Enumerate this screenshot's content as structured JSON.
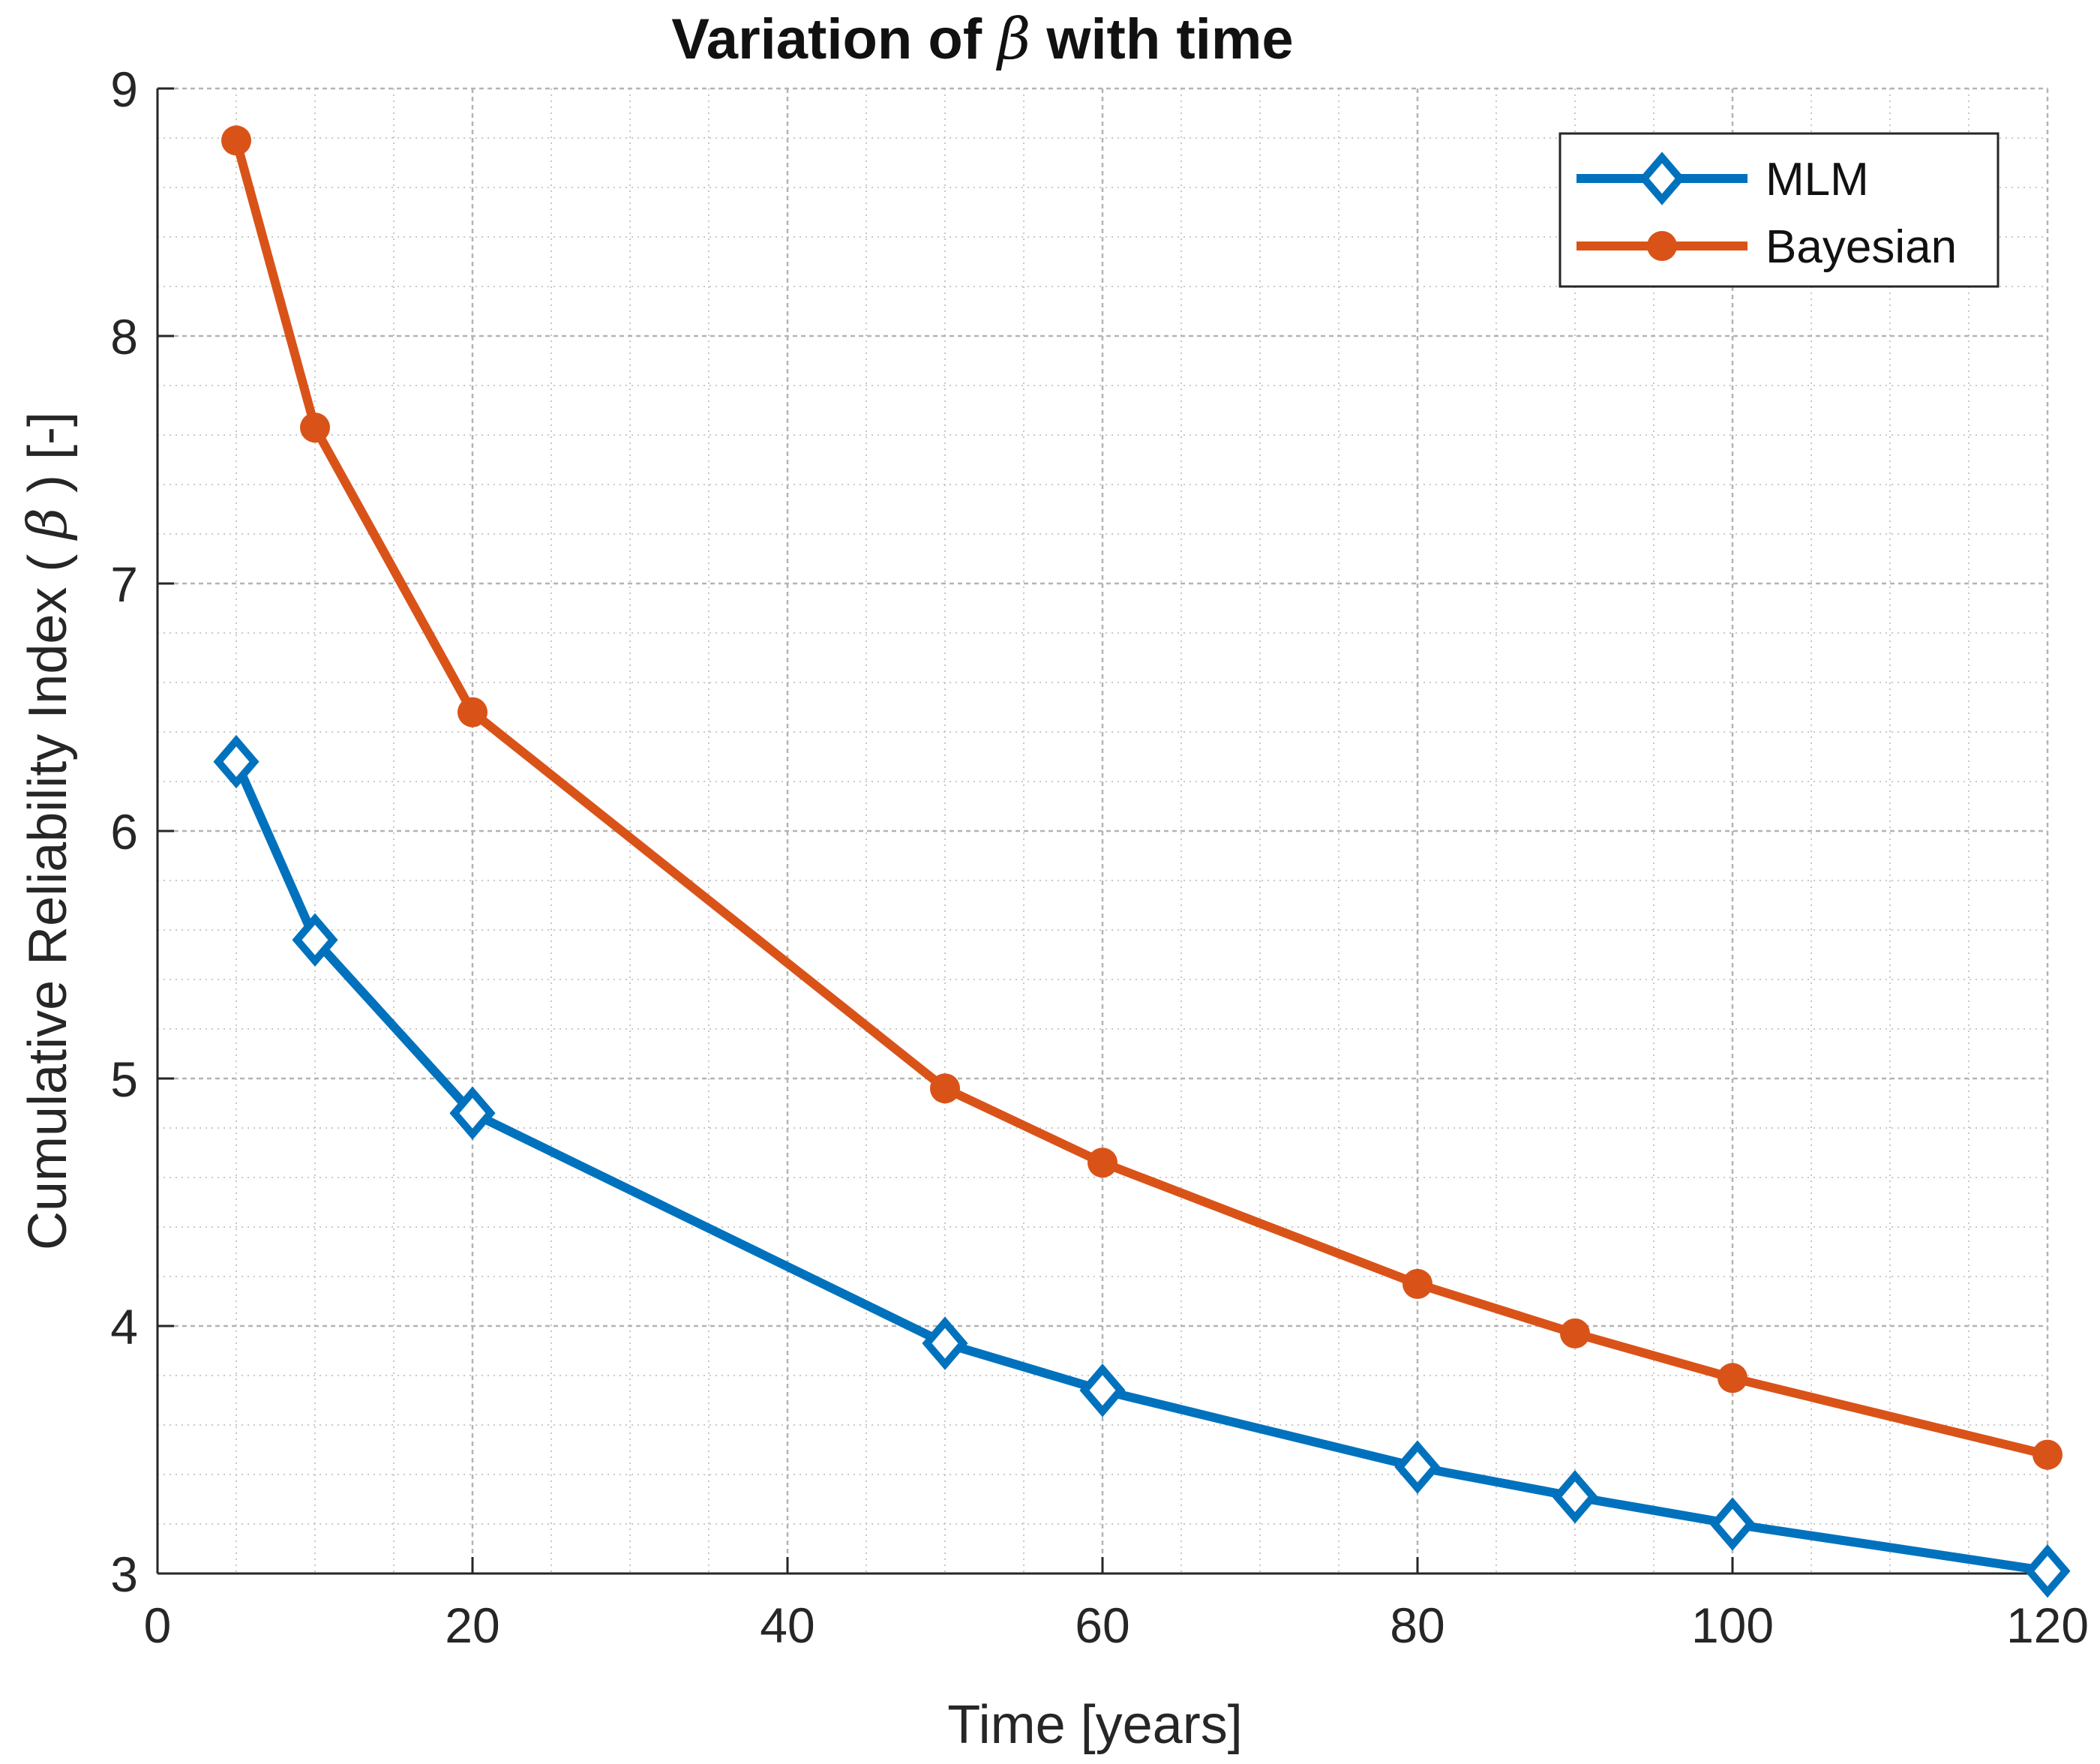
{
  "chart_data": {
    "type": "line",
    "title": {
      "prefix": "Variation of ",
      "symbol": "β",
      "suffix": " with time"
    },
    "xlabel": "Time [years]",
    "ylabel": {
      "prefix": "Cumulative Reliability Index ( ",
      "symbol": "β",
      "suffix": ") [-]"
    },
    "xlim": [
      0,
      120
    ],
    "ylim": [
      3,
      9
    ],
    "xticks": [
      0,
      20,
      40,
      60,
      80,
      100,
      120
    ],
    "yticks": [
      3,
      4,
      5,
      6,
      7,
      8,
      9
    ],
    "x_minor_step": 5,
    "y_minor_step": 0.2,
    "grid": true,
    "legend_position": "top-right",
    "series": [
      {
        "name": "MLM",
        "marker": "diamond",
        "color": "#0072BD",
        "x": [
          5,
          10,
          20,
          50,
          60,
          80,
          90,
          100,
          120
        ],
        "y": [
          6.28,
          5.56,
          4.86,
          3.93,
          3.74,
          3.43,
          3.31,
          3.2,
          3.01
        ]
      },
      {
        "name": "Bayesian",
        "marker": "circle",
        "color": "#D95319",
        "x": [
          5,
          10,
          20,
          50,
          60,
          80,
          90,
          100,
          120
        ],
        "y": [
          8.79,
          7.63,
          6.48,
          4.96,
          4.66,
          4.17,
          3.97,
          3.79,
          3.48
        ]
      }
    ]
  }
}
